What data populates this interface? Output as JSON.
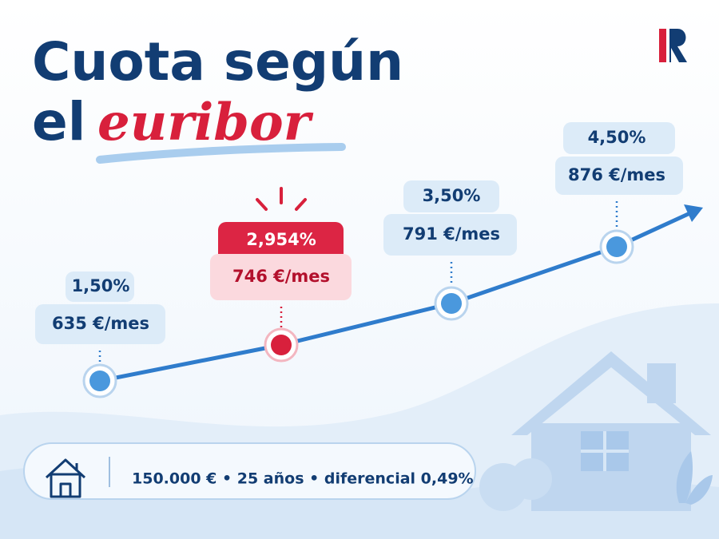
{
  "title": {
    "line1": "Cuota según",
    "line2": "el",
    "accent": "euribor"
  },
  "points": [
    {
      "rate": "1,50%",
      "payment": "635 €/mes"
    },
    {
      "rate": "2,954%",
      "payment": "746 €/mes"
    },
    {
      "rate": "3,50%",
      "payment": "791 €/mes"
    },
    {
      "rate": "4,50%",
      "payment": "876 €/mes"
    }
  ],
  "footer": "150.000 € • 25 años • diferencial 0,49%"
}
